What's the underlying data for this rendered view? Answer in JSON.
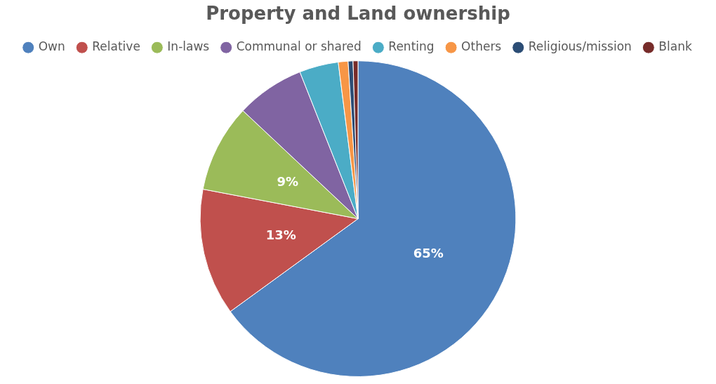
{
  "chart_data": {
    "type": "pie",
    "title": "Property and Land ownership",
    "categories": [
      "Own",
      "Relative",
      "In-laws",
      "Communal or shared",
      "Renting",
      "Others",
      "Religious/mission",
      "Blank"
    ],
    "values": [
      65,
      13,
      9,
      7,
      4,
      1,
      0.5,
      0.5
    ],
    "colors": [
      "#4f81bd",
      "#c0504d",
      "#9bbb59",
      "#8064a2",
      "#4bacc6",
      "#f79646",
      "#2c4d75",
      "#772c2a"
    ],
    "value_labels": [
      "65%",
      "13%",
      "9%",
      null,
      null,
      null,
      null,
      null
    ],
    "legend": "top"
  }
}
